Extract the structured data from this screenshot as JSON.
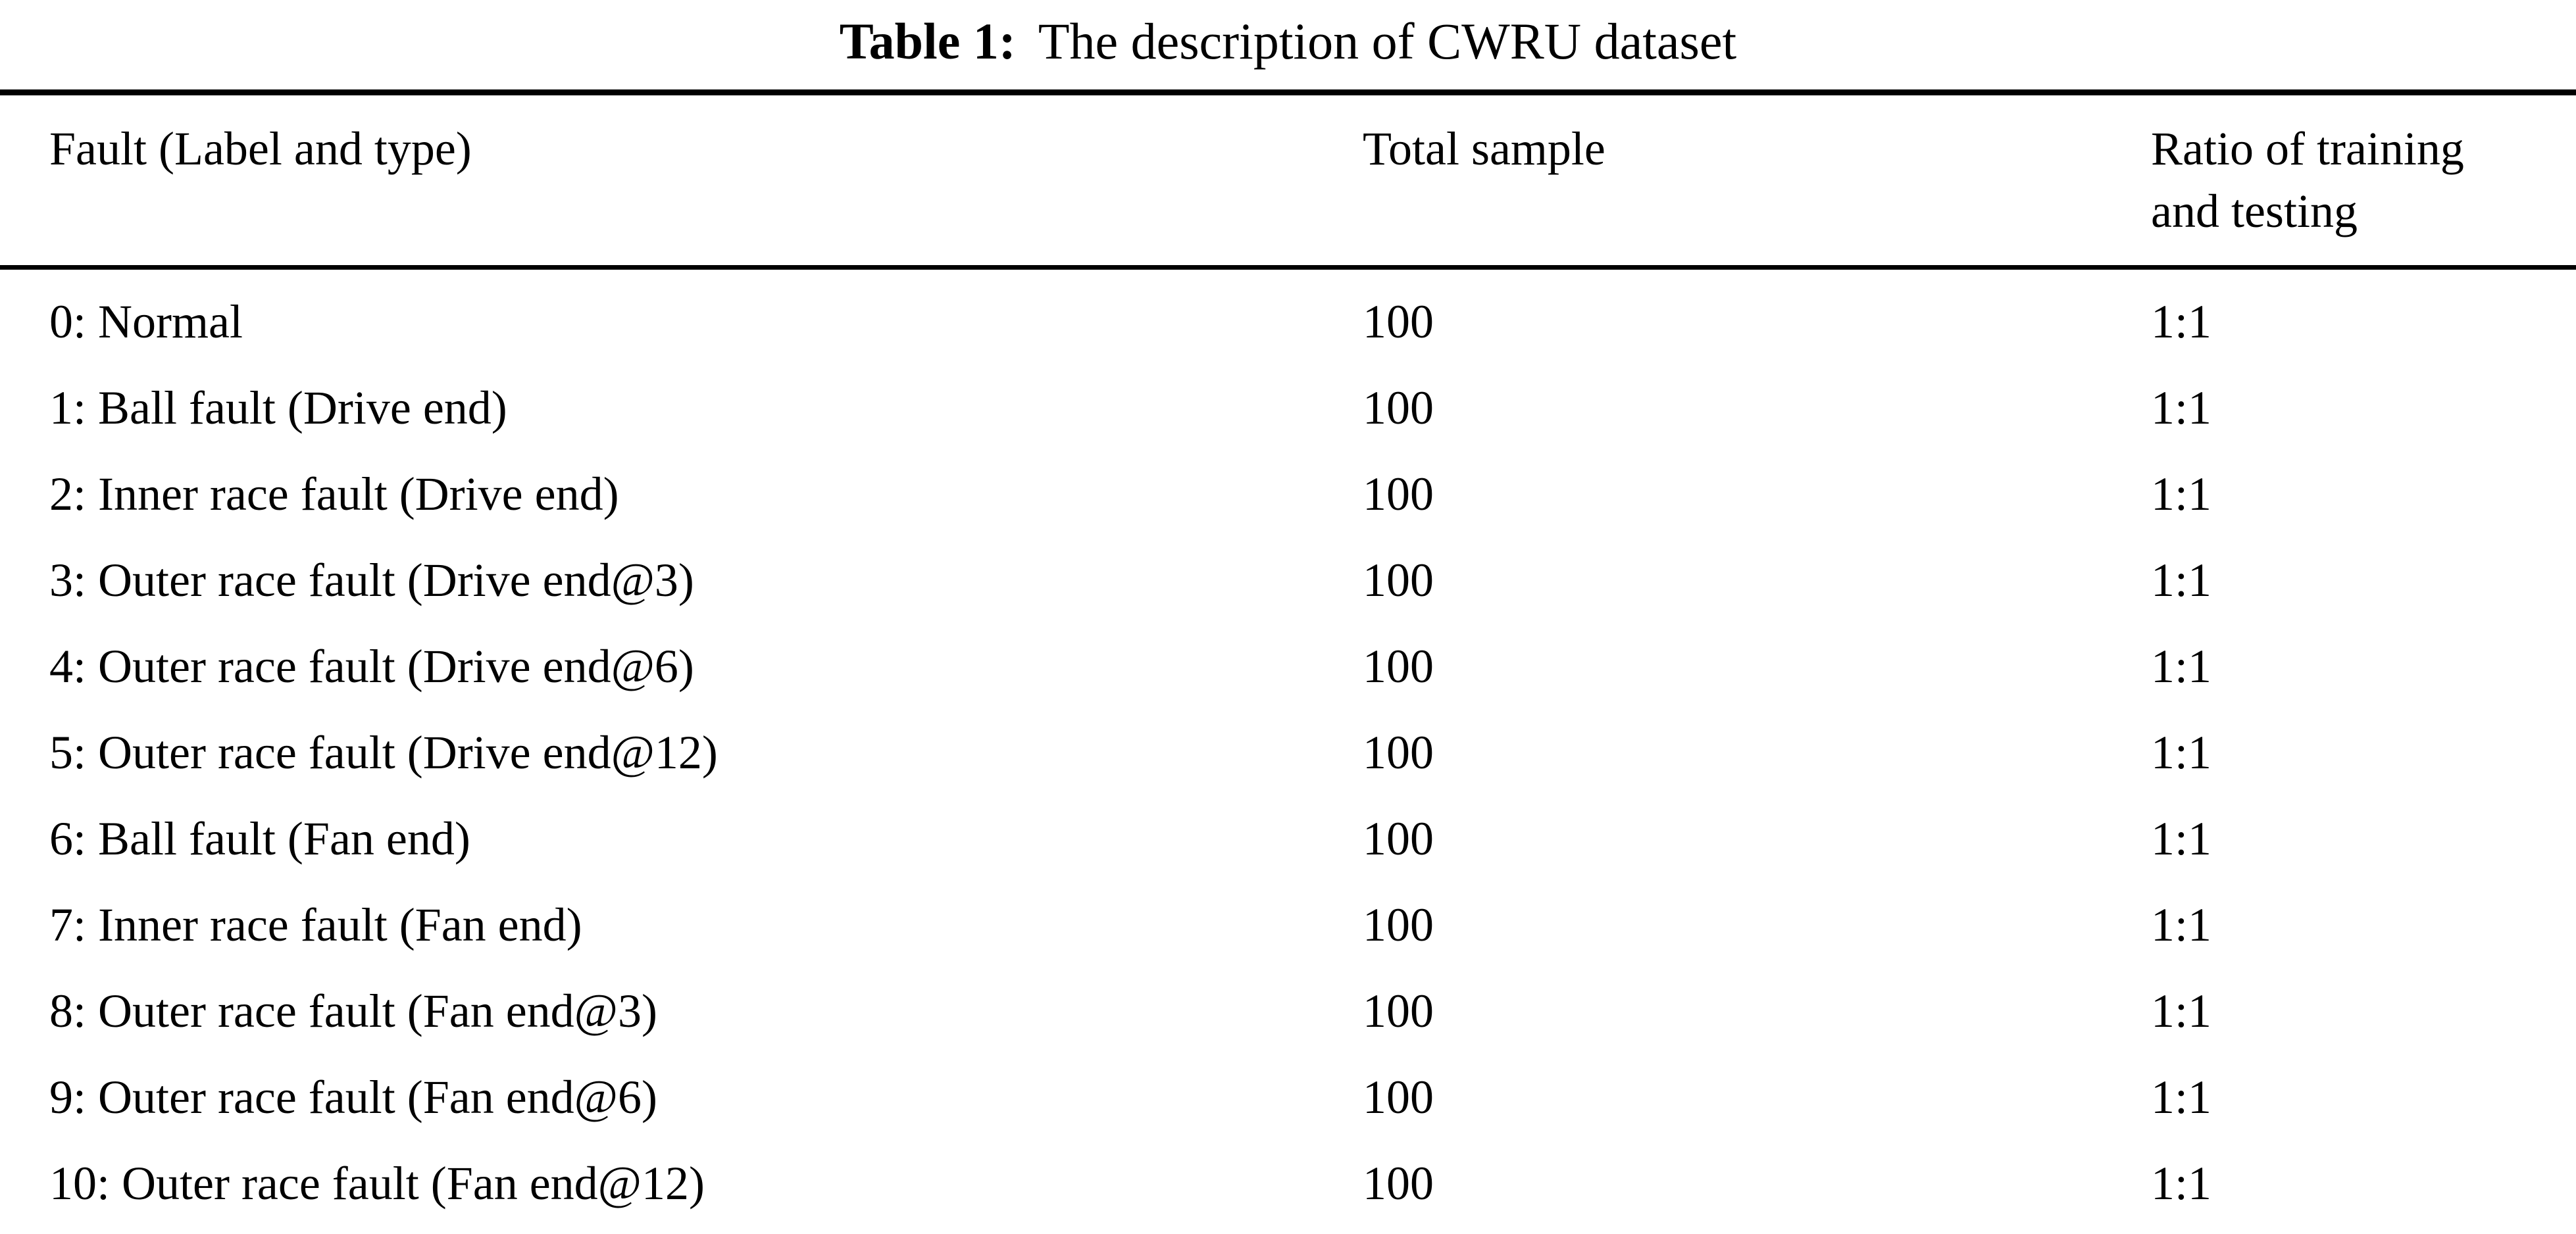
{
  "caption": {
    "label": "Table 1:",
    "text": "The description of CWRU dataset"
  },
  "table": {
    "columns": {
      "fault": "Fault (Label and type)",
      "total_sample": "Total sample",
      "ratio": "Ratio of training and testing"
    },
    "rows": [
      {
        "fault": "0: Normal",
        "total_sample": "100",
        "ratio": "1:1"
      },
      {
        "fault": "1: Ball fault (Drive end)",
        "total_sample": "100",
        "ratio": "1:1"
      },
      {
        "fault": "2: Inner race fault (Drive end)",
        "total_sample": "100",
        "ratio": "1:1"
      },
      {
        "fault": "3: Outer race fault (Drive end@3)",
        "total_sample": "100",
        "ratio": "1:1"
      },
      {
        "fault": "4: Outer race fault (Drive end@6)",
        "total_sample": "100",
        "ratio": "1:1"
      },
      {
        "fault": "5: Outer race fault (Drive end@12)",
        "total_sample": "100",
        "ratio": "1:1"
      },
      {
        "fault": "6: Ball fault (Fan end)",
        "total_sample": "100",
        "ratio": "1:1"
      },
      {
        "fault": "7: Inner race fault (Fan end)",
        "total_sample": "100",
        "ratio": "1:1"
      },
      {
        "fault": "8: Outer race fault (Fan end@3)",
        "total_sample": "100",
        "ratio": "1:1"
      },
      {
        "fault": "9: Outer race fault (Fan end@6)",
        "total_sample": "100",
        "ratio": "1:1"
      },
      {
        "fault": "10: Outer race fault (Fan end@12)",
        "total_sample": "100",
        "ratio": "1:1"
      }
    ]
  }
}
